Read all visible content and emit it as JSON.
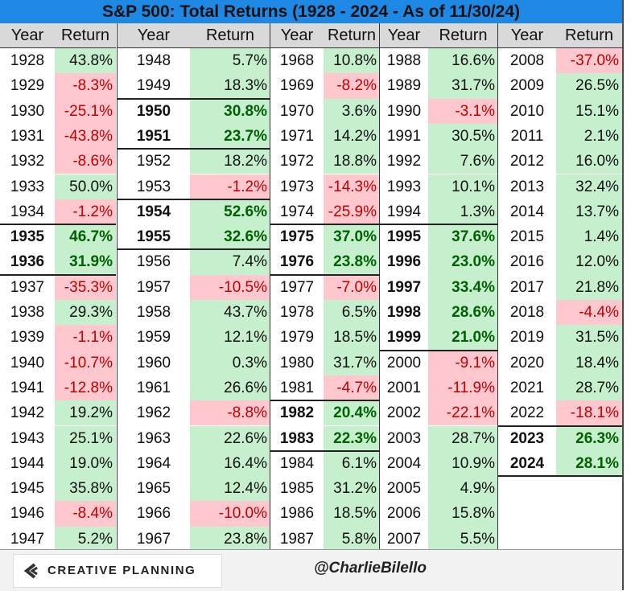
{
  "title": "S&P 500: Total Returns (1928 - 2024 - As of 11/30/24)",
  "headers": {
    "year": "Year",
    "return": "Return"
  },
  "colors": {
    "title_bar": "#1e88e5",
    "positive_bg": "#c6efce",
    "negative_bg": "#ffc7ce",
    "negative_text": "#c00000",
    "positive_bold_text": "#006100"
  },
  "chart_data": {
    "type": "table",
    "title": "S&P 500: Total Returns (1928 - 2024 - As of 11/30/24)",
    "columns": [
      "Year",
      "Return"
    ],
    "rows": [
      [
        "1928",
        "43.8%"
      ],
      [
        "1929",
        "-8.3%"
      ],
      [
        "1930",
        "-25.1%"
      ],
      [
        "1931",
        "-43.8%"
      ],
      [
        "1932",
        "-8.6%"
      ],
      [
        "1933",
        "50.0%"
      ],
      [
        "1934",
        "-1.2%"
      ],
      [
        "1935",
        "46.7%"
      ],
      [
        "1936",
        "31.9%"
      ],
      [
        "1937",
        "-35.3%"
      ],
      [
        "1938",
        "29.3%"
      ],
      [
        "1939",
        "-1.1%"
      ],
      [
        "1940",
        "-10.7%"
      ],
      [
        "1941",
        "-12.8%"
      ],
      [
        "1942",
        "19.2%"
      ],
      [
        "1943",
        "25.1%"
      ],
      [
        "1944",
        "19.0%"
      ],
      [
        "1945",
        "35.8%"
      ],
      [
        "1946",
        "-8.4%"
      ],
      [
        "1947",
        "5.2%"
      ],
      [
        "1948",
        "5.7%"
      ],
      [
        "1949",
        "18.3%"
      ],
      [
        "1950",
        "30.8%"
      ],
      [
        "1951",
        "23.7%"
      ],
      [
        "1952",
        "18.2%"
      ],
      [
        "1953",
        "-1.2%"
      ],
      [
        "1954",
        "52.6%"
      ],
      [
        "1955",
        "32.6%"
      ],
      [
        "1956",
        "7.4%"
      ],
      [
        "1957",
        "-10.5%"
      ],
      [
        "1958",
        "43.7%"
      ],
      [
        "1959",
        "12.1%"
      ],
      [
        "1960",
        "0.3%"
      ],
      [
        "1961",
        "26.6%"
      ],
      [
        "1962",
        "-8.8%"
      ],
      [
        "1963",
        "22.6%"
      ],
      [
        "1964",
        "16.4%"
      ],
      [
        "1965",
        "12.4%"
      ],
      [
        "1966",
        "-10.0%"
      ],
      [
        "1967",
        "23.8%"
      ],
      [
        "1968",
        "10.8%"
      ],
      [
        "1969",
        "-8.2%"
      ],
      [
        "1970",
        "3.6%"
      ],
      [
        "1971",
        "14.2%"
      ],
      [
        "1972",
        "18.8%"
      ],
      [
        "1973",
        "-14.3%"
      ],
      [
        "1974",
        "-25.9%"
      ],
      [
        "1975",
        "37.0%"
      ],
      [
        "1976",
        "23.8%"
      ],
      [
        "1977",
        "-7.0%"
      ],
      [
        "1978",
        "6.5%"
      ],
      [
        "1979",
        "18.5%"
      ],
      [
        "1980",
        "31.7%"
      ],
      [
        "1981",
        "-4.7%"
      ],
      [
        "1982",
        "20.4%"
      ],
      [
        "1983",
        "22.3%"
      ],
      [
        "1984",
        "6.1%"
      ],
      [
        "1985",
        "31.2%"
      ],
      [
        "1986",
        "18.5%"
      ],
      [
        "1987",
        "5.8%"
      ],
      [
        "1988",
        "16.6%"
      ],
      [
        "1989",
        "31.7%"
      ],
      [
        "1990",
        "-3.1%"
      ],
      [
        "1991",
        "30.5%"
      ],
      [
        "1992",
        "7.6%"
      ],
      [
        "1993",
        "10.1%"
      ],
      [
        "1994",
        "1.3%"
      ],
      [
        "1995",
        "37.6%"
      ],
      [
        "1996",
        "23.0%"
      ],
      [
        "1997",
        "33.4%"
      ],
      [
        "1998",
        "28.6%"
      ],
      [
        "1999",
        "21.0%"
      ],
      [
        "2000",
        "-9.1%"
      ],
      [
        "2001",
        "-11.9%"
      ],
      [
        "2002",
        "-22.1%"
      ],
      [
        "2003",
        "28.7%"
      ],
      [
        "2004",
        "10.9%"
      ],
      [
        "2005",
        "4.9%"
      ],
      [
        "2006",
        "15.8%"
      ],
      [
        "2007",
        "5.5%"
      ],
      [
        "2008",
        "-37.0%"
      ],
      [
        "2009",
        "26.5%"
      ],
      [
        "2010",
        "15.1%"
      ],
      [
        "2011",
        "2.1%"
      ],
      [
        "2012",
        "16.0%"
      ],
      [
        "2013",
        "32.4%"
      ],
      [
        "2014",
        "13.7%"
      ],
      [
        "2015",
        "1.4%"
      ],
      [
        "2016",
        "12.0%"
      ],
      [
        "2017",
        "21.8%"
      ],
      [
        "2018",
        "-4.4%"
      ],
      [
        "2019",
        "31.5%"
      ],
      [
        "2020",
        "18.4%"
      ],
      [
        "2021",
        "28.7%"
      ],
      [
        "2022",
        "-18.1%"
      ],
      [
        "2023",
        "26.3%"
      ],
      [
        "2024",
        "28.1%"
      ]
    ],
    "bold_years": [
      "1935",
      "1936",
      "1950",
      "1951",
      "1954",
      "1955",
      "1975",
      "1976",
      "1982",
      "1983",
      "1995",
      "1996",
      "1997",
      "1998",
      "1999",
      "2023",
      "2024"
    ]
  },
  "footer": {
    "brand": "CREATIVE PLANNING",
    "handle": "@CharlieBilello"
  }
}
